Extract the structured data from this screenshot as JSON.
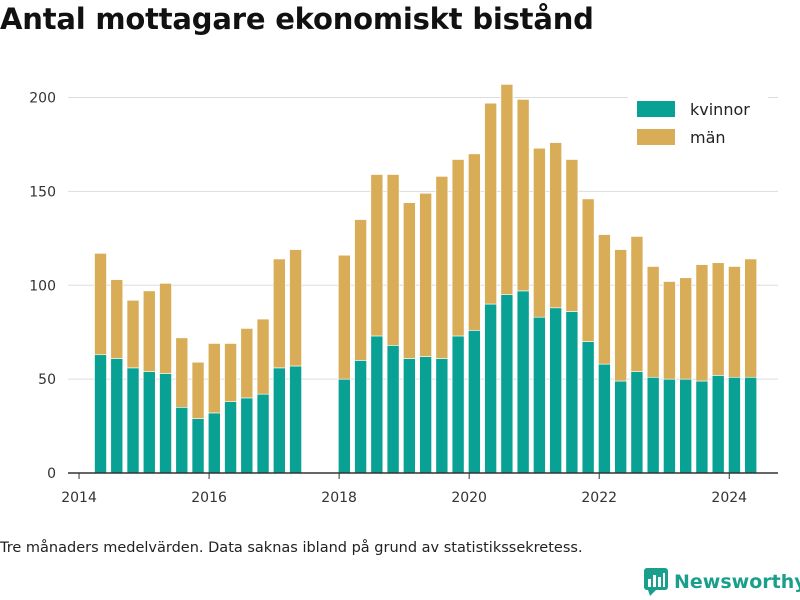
{
  "title": "Antal mottagare ekonomiskt bistånd",
  "footnote": "Tre månaders medelvärden. Data saknas ibland på grund av statistikssekretess.",
  "brand": "Newsworthy",
  "colors": {
    "kvinnor": "#0aa195",
    "man": "#d9ad58",
    "grid": "#dddddd",
    "axis": "#333333",
    "brand": "#1b9f8d"
  },
  "chart_data": {
    "type": "bar",
    "stacked": true,
    "grid": true,
    "legend_position": "top-right",
    "xlim": [
      2013.83,
      2024.75
    ],
    "ylim": [
      0,
      220
    ],
    "x_ticks": [
      2014,
      2016,
      2018,
      2020,
      2022,
      2024
    ],
    "y_ticks": [
      0,
      50,
      100,
      150,
      200
    ],
    "x": [
      2014.33,
      2014.58,
      2014.83,
      2015.08,
      2015.33,
      2015.58,
      2015.83,
      2016.08,
      2016.33,
      2016.58,
      2016.83,
      2017.08,
      2017.33,
      2017.58,
      2017.83,
      2018.08,
      2018.33,
      2018.58,
      2018.83,
      2019.08,
      2019.33,
      2019.58,
      2019.83,
      2020.08,
      2020.33,
      2020.58,
      2020.83,
      2021.08,
      2021.33,
      2021.58,
      2021.83,
      2022.08,
      2022.33,
      2022.58,
      2022.83,
      2023.08,
      2023.33,
      2023.58,
      2023.83,
      2024.08,
      2024.33
    ],
    "series": [
      {
        "name": "kvinnor",
        "values": [
          63,
          61,
          56,
          54,
          53,
          35,
          29,
          32,
          38,
          40,
          42,
          56,
          57,
          null,
          null,
          50,
          60,
          73,
          68,
          61,
          62,
          61,
          73,
          76,
          90,
          95,
          97,
          83,
          88,
          86,
          70,
          58,
          49,
          54,
          51,
          50,
          50,
          49,
          52,
          51,
          51
        ]
      },
      {
        "name": "män",
        "values": [
          54,
          42,
          36,
          43,
          48,
          37,
          30,
          37,
          31,
          37,
          40,
          58,
          62,
          null,
          null,
          66,
          75,
          86,
          91,
          83,
          87,
          97,
          94,
          94,
          107,
          112,
          102,
          90,
          88,
          81,
          76,
          69,
          70,
          72,
          59,
          52,
          54,
          62,
          60,
          59,
          63
        ]
      }
    ]
  }
}
